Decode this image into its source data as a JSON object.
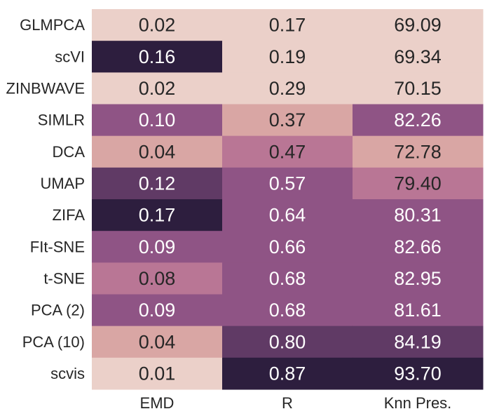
{
  "chart_data": {
    "type": "heatmap",
    "title": "",
    "xlabel": "",
    "ylabel": "",
    "columns": [
      "EMD",
      "R",
      "Knn Pres."
    ],
    "rows": [
      "GLMPCA",
      "scVI",
      "ZINBWAVE",
      "SIMLR",
      "DCA",
      "UMAP",
      "ZIFA",
      "FIt-SNE",
      "t-SNE",
      "PCA (2)",
      "PCA (10)",
      "scvis"
    ],
    "values": [
      [
        0.02,
        0.17,
        69.09
      ],
      [
        0.16,
        0.19,
        69.34
      ],
      [
        0.02,
        0.29,
        70.15
      ],
      [
        0.1,
        0.37,
        82.26
      ],
      [
        0.04,
        0.47,
        72.78
      ],
      [
        0.12,
        0.57,
        79.4
      ],
      [
        0.17,
        0.64,
        80.31
      ],
      [
        0.09,
        0.66,
        82.66
      ],
      [
        0.08,
        0.68,
        82.95
      ],
      [
        0.09,
        0.68,
        81.61
      ],
      [
        0.04,
        0.8,
        84.19
      ],
      [
        0.01,
        0.87,
        93.7
      ]
    ],
    "labels": [
      [
        "0.02",
        "0.17",
        "69.09"
      ],
      [
        "0.16",
        "0.19",
        "69.34"
      ],
      [
        "0.02",
        "0.29",
        "70.15"
      ],
      [
        "0.10",
        "0.37",
        "82.26"
      ],
      [
        "0.04",
        "0.47",
        "72.78"
      ],
      [
        "0.12",
        "0.57",
        "79.40"
      ],
      [
        "0.17",
        "0.64",
        "80.31"
      ],
      [
        "0.09",
        "0.66",
        "82.66"
      ],
      [
        "0.08",
        "0.68",
        "82.95"
      ],
      [
        "0.09",
        "0.68",
        "81.61"
      ],
      [
        "0.04",
        "0.80",
        "84.19"
      ],
      [
        "0.01",
        "0.87",
        "93.70"
      ]
    ],
    "colors": [
      [
        "#ebd0c9",
        "#ebd0c9",
        "#ebd0c9"
      ],
      [
        "#2d1e3e",
        "#ebd0c9",
        "#ebd0c9"
      ],
      [
        "#ebd0c9",
        "#ebd0c9",
        "#ebd0c9"
      ],
      [
        "#8f5485",
        "#d9a6a4",
        "#8f5485"
      ],
      [
        "#d9a6a4",
        "#b97695",
        "#d9a6a4"
      ],
      [
        "#603a65",
        "#8f5485",
        "#b97695"
      ],
      [
        "#2d1e3e",
        "#8f5485",
        "#8f5485"
      ],
      [
        "#8f5485",
        "#8f5485",
        "#8f5485"
      ],
      [
        "#b97695",
        "#8f5485",
        "#8f5485"
      ],
      [
        "#8f5485",
        "#8f5485",
        "#8f5485"
      ],
      [
        "#d9a6a4",
        "#603a65",
        "#603a65"
      ],
      [
        "#ebd0c9",
        "#2d1e3e",
        "#2d1e3e"
      ]
    ],
    "dark_text_color": "#262626",
    "light_text_color": "#ffffff",
    "tick_label_color": "#262626",
    "grid": false,
    "colorbar": false
  }
}
